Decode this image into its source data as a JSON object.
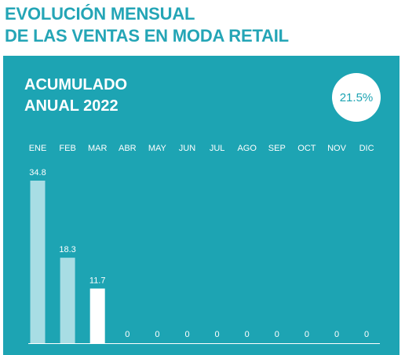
{
  "title": {
    "line1": "EVOLUCIÓN MENSUAL",
    "line2": "DE LAS VENTAS EN MODA RETAIL"
  },
  "panel": {
    "heading_line1": "ACUMULADO",
    "heading_line2": "ANUAL 2022",
    "badge": "21.5%"
  },
  "colors": {
    "title": "#24a5b6",
    "panel_background": "#1da4b3",
    "bar_past": "#a8dde4",
    "bar_current": "#ffffff"
  },
  "chart_data": {
    "type": "bar",
    "categories": [
      "ENE",
      "FEB",
      "MAR",
      "ABR",
      "MAY",
      "JUN",
      "JUL",
      "AGO",
      "SEP",
      "OCT",
      "NOV",
      "DIC"
    ],
    "values": [
      34.8,
      18.3,
      11.7,
      0,
      0,
      0,
      0,
      0,
      0,
      0,
      0,
      0
    ],
    "value_labels": [
      "34.8",
      "18.3",
      "11.7",
      "0",
      "0",
      "0",
      "0",
      "0",
      "0",
      "0",
      "0",
      "0"
    ],
    "ylim": [
      0,
      34.8
    ],
    "grid": false,
    "legend": "none"
  }
}
